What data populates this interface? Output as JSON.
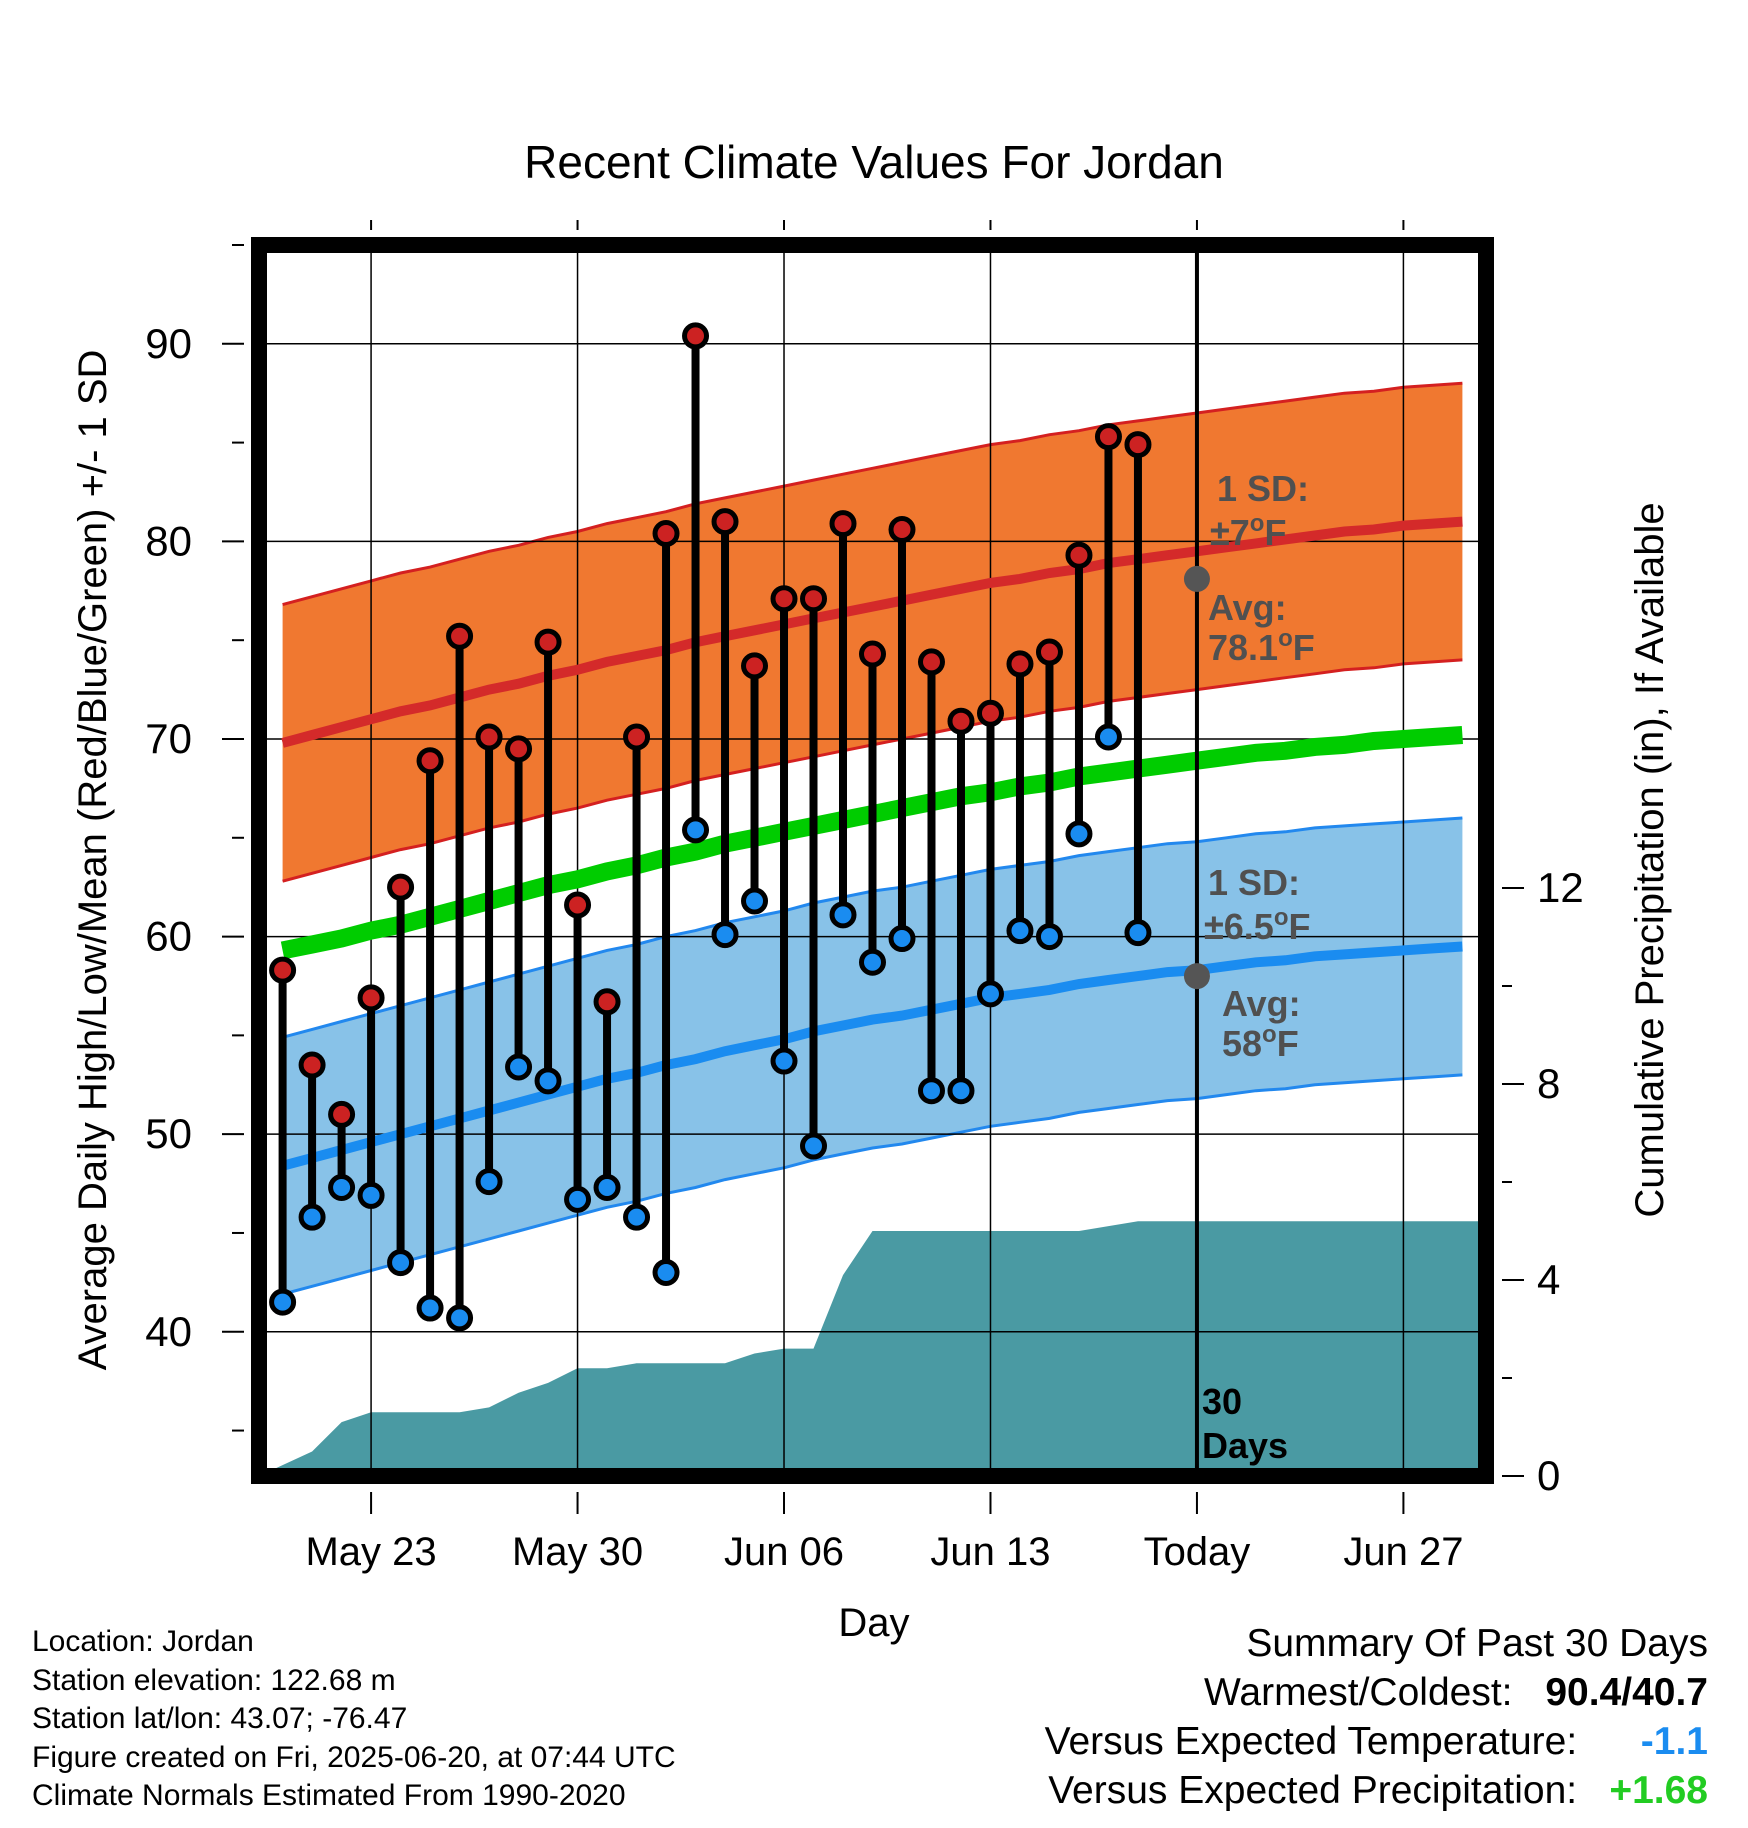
{
  "chart_data": {
    "type": "line",
    "title": "Recent Climate Values For Jordan",
    "xlabel": "Day",
    "ylabel": "Average Daily High/Low/Mean (Red/Blue/Green) +/- 1 SD",
    "y2label": "Cumulative Precipitation (in), If Available",
    "ylim": [
      32.7,
      95
    ],
    "yticks": [
      40,
      50,
      60,
      70,
      80,
      90
    ],
    "y2lim": [
      0,
      30
    ],
    "y2ticks": [
      0,
      4,
      8,
      12
    ],
    "x_tick_days": [
      3,
      10,
      17,
      24,
      31,
      38
    ],
    "x_tick_labels": [
      "May 23",
      "May 30",
      "Jun 06",
      "Jun 13",
      "Today",
      "Jun 27"
    ],
    "xlim": [
      -0.8,
      40.8
    ],
    "today_day": 31,
    "today_label": "30 Days",
    "grid": true,
    "days": [
      0,
      1,
      2,
      3,
      4,
      5,
      6,
      7,
      8,
      9,
      10,
      11,
      12,
      13,
      14,
      15,
      16,
      17,
      18,
      19,
      20,
      21,
      22,
      23,
      24,
      25,
      26,
      27,
      28,
      29,
      30
    ],
    "highs": [
      58.3,
      53.5,
      51.0,
      56.9,
      62.5,
      68.9,
      75.2,
      70.1,
      69.5,
      74.9,
      61.6,
      56.7,
      70.1,
      80.4,
      90.4,
      81.0,
      73.7,
      77.1,
      77.1,
      80.9,
      74.3,
      80.6,
      73.9,
      70.9,
      71.3,
      73.8,
      74.4,
      79.3,
      85.3,
      84.9,
      null
    ],
    "lows": [
      41.5,
      45.8,
      47.3,
      46.9,
      43.5,
      41.2,
      40.7,
      47.6,
      53.4,
      52.7,
      46.7,
      47.3,
      45.8,
      43.0,
      65.4,
      60.1,
      61.8,
      53.7,
      49.4,
      61.1,
      58.7,
      59.9,
      52.2,
      52.2,
      57.1,
      60.3,
      60.0,
      65.2,
      70.1,
      60.2,
      null
    ],
    "normal_high_avg": [
      69.8,
      70.2,
      70.6,
      71.0,
      71.4,
      71.7,
      72.1,
      72.5,
      72.8,
      73.2,
      73.5,
      73.9,
      74.2,
      74.5,
      74.9,
      75.2,
      75.5,
      75.8,
      76.1,
      76.4,
      76.7,
      77.0,
      77.3,
      77.6,
      77.9,
      78.1,
      78.4,
      78.6,
      78.9,
      79.1,
      79.3,
      79.5,
      79.7,
      79.9,
      80.1,
      80.3,
      80.5,
      80.6,
      80.8,
      80.9,
      81.0
    ],
    "normal_mean": [
      59.3,
      59.6,
      59.9,
      60.3,
      60.6,
      61.0,
      61.4,
      61.8,
      62.2,
      62.6,
      62.9,
      63.3,
      63.6,
      64.0,
      64.3,
      64.7,
      65.0,
      65.3,
      65.6,
      65.9,
      66.2,
      66.5,
      66.8,
      67.1,
      67.3,
      67.6,
      67.8,
      68.1,
      68.3,
      68.5,
      68.7,
      68.9,
      69.1,
      69.3,
      69.4,
      69.6,
      69.7,
      69.9,
      70.0,
      70.1,
      70.2
    ],
    "normal_low_avg": [
      48.4,
      48.8,
      49.2,
      49.6,
      50.0,
      50.4,
      50.8,
      51.2,
      51.6,
      52.0,
      52.4,
      52.8,
      53.1,
      53.5,
      53.8,
      54.2,
      54.5,
      54.8,
      55.2,
      55.5,
      55.8,
      56.0,
      56.3,
      56.6,
      56.9,
      57.1,
      57.3,
      57.6,
      57.8,
      58.0,
      58.2,
      58.3,
      58.5,
      58.7,
      58.8,
      59.0,
      59.1,
      59.2,
      59.3,
      59.4,
      59.5
    ],
    "high_sd": 7.0,
    "low_sd": 6.5,
    "precip_days": [
      -0.8,
      1,
      2,
      3,
      6,
      7,
      8,
      9,
      10,
      11,
      12,
      13,
      14,
      15,
      16,
      17,
      18,
      19,
      20,
      21,
      22,
      23,
      24,
      25,
      26,
      27,
      28,
      29,
      30,
      31,
      40.8
    ],
    "precip_cum": [
      0,
      0.5,
      1.1,
      1.3,
      1.3,
      1.4,
      1.7,
      1.9,
      2.2,
      2.2,
      2.3,
      2.3,
      2.3,
      2.3,
      2.5,
      2.6,
      2.6,
      4.1,
      5.0,
      5.0,
      5.0,
      5.0,
      5.0,
      5.0,
      5.0,
      5.0,
      5.1,
      5.2,
      5.2,
      5.2,
      5.2
    ],
    "annotations": {
      "high_sd_label": "1 SD:",
      "high_sd_value": "±7",
      "high_avg_label": "Avg:",
      "high_avg_value": "78.1",
      "low_sd_label": "1 SD:",
      "low_sd_value": "±6.5",
      "low_avg_label": "Avg:",
      "low_avg_value": "58",
      "deg_symbol": "o",
      "unit_F": "F"
    },
    "colors": {
      "high_band": "#f07830",
      "high_band_edge": "#d42020",
      "high_avg_line": "#d42a2a",
      "mean_line": "#00cc00",
      "low_band": "#88c2e8",
      "low_band_edge": "#2288ee",
      "low_avg_line": "#1a8cf0",
      "precip": "#4a9aa3",
      "high_marker": "#cc2222",
      "low_marker": "#1a8cf0",
      "annotation": "#505050"
    }
  },
  "footer": {
    "location": "Location: Jordan",
    "elevation": "Station elevation: 122.68 m",
    "latlon": "Station lat/lon: 43.07; -76.47",
    "created": "Figure created on Fri, 2025-06-20, at 07:44 UTC",
    "normals": "Climate Normals Estimated From 1990-2020"
  },
  "summary": {
    "title": "Summary Of Past 30 Days",
    "warm_cold_label": "Warmest/Coldest:",
    "warmest": "90.4",
    "slash": "/",
    "coldest": "40.7",
    "temp_label": "Versus Expected Temperature:",
    "temp_value": "-1.1",
    "temp_color": "#1a8cf0",
    "precip_label": "Versus Expected Precipitation:",
    "precip_value": "+1.68",
    "precip_color": "#22cc22"
  }
}
